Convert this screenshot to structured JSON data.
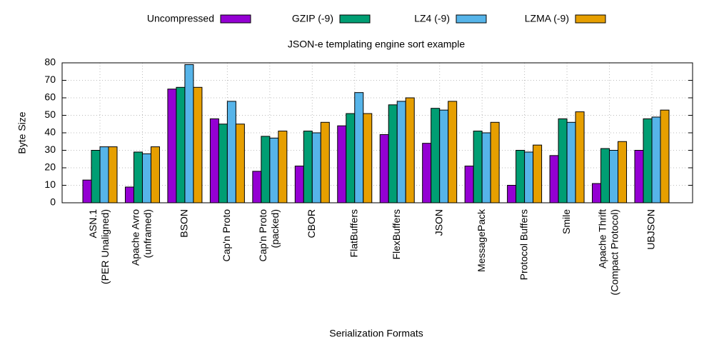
{
  "chart_data": {
    "type": "bar",
    "title": "JSON-e templating engine sort example",
    "x_label": "Serialization Formats",
    "y_label": "Byte Size",
    "categories": [
      [
        "ASN.1",
        "(PER Unaligned)"
      ],
      [
        "Apache Avro",
        "(unframed)"
      ],
      [
        "BSON"
      ],
      [
        "Cap'n Proto"
      ],
      [
        "Cap'n Proto",
        "(packed)"
      ],
      [
        "CBOR"
      ],
      [
        "FlatBuffers"
      ],
      [
        "FlexBuffers"
      ],
      [
        "JSON"
      ],
      [
        "MessagePack"
      ],
      [
        "Protocol Buffers"
      ],
      [
        "Smile"
      ],
      [
        "Apache Thrift",
        "(Compact Protocol)"
      ],
      [
        "UBJSON"
      ]
    ],
    "series": [
      {
        "name": "Uncompressed",
        "color": "#9400d3",
        "values": [
          13,
          9,
          65,
          48,
          18,
          21,
          44,
          39,
          34,
          21,
          10,
          27,
          11,
          30
        ]
      },
      {
        "name": "GZIP (-9)",
        "color": "#009e73",
        "values": [
          30,
          29,
          66,
          45,
          38,
          41,
          51,
          56,
          54,
          41,
          30,
          48,
          31,
          48
        ]
      },
      {
        "name": "LZ4 (-9)",
        "color": "#56b4e9",
        "values": [
          32,
          28,
          79,
          58,
          37,
          40,
          63,
          58,
          53,
          40,
          29,
          46,
          30,
          49
        ]
      },
      {
        "name": "LZMA (-9)",
        "color": "#e69f00",
        "values": [
          32,
          32,
          66,
          45,
          41,
          46,
          51,
          60,
          58,
          46,
          33,
          52,
          35,
          53
        ]
      }
    ],
    "ylim": [
      0,
      80
    ],
    "yticks": [
      0,
      10,
      20,
      30,
      40,
      50,
      60,
      70,
      80
    ],
    "grid": true
  }
}
